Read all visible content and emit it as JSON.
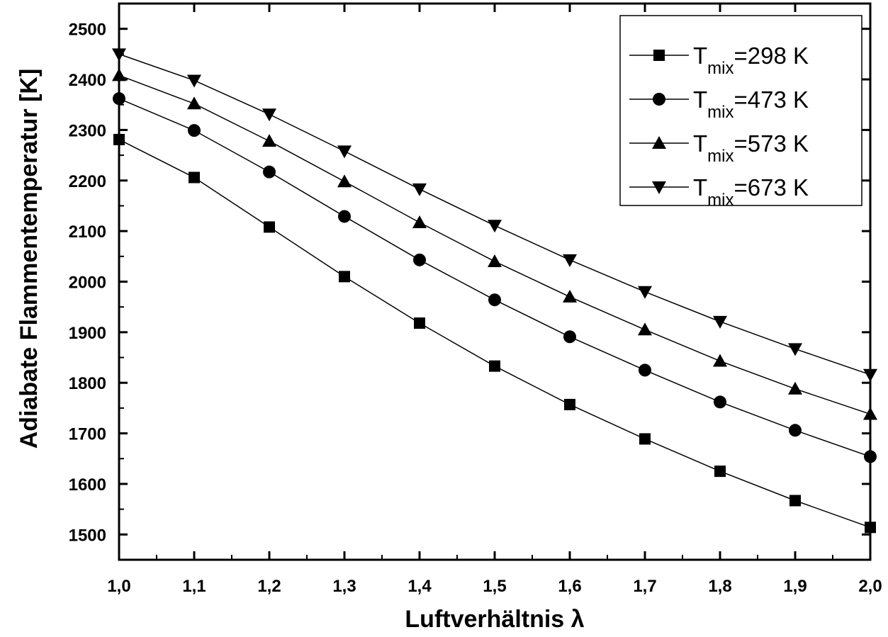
{
  "chart_data": {
    "type": "line",
    "title": "",
    "xlabel": "Luftverhältnis λ",
    "ylabel": "Adiabate Flammentemperatur [K]",
    "xlim": [
      1.0,
      2.0
    ],
    "ylim": [
      1450,
      2550
    ],
    "x": [
      1.0,
      1.1,
      1.2,
      1.3,
      1.4,
      1.5,
      1.6,
      1.7,
      1.8,
      1.9,
      2.0
    ],
    "x_tick_labels": [
      "1,0",
      "1,1",
      "1,2",
      "1,3",
      "1,4",
      "1,5",
      "1,6",
      "1,7",
      "1,8",
      "1,9",
      "2,0"
    ],
    "y_ticks": [
      1500,
      1600,
      1700,
      1800,
      1900,
      2000,
      2100,
      2200,
      2300,
      2400,
      2500
    ],
    "y_tick_labels": [
      "1500",
      "1600",
      "1700",
      "1800",
      "1900",
      "2000",
      "2100",
      "2200",
      "2300",
      "2400",
      "2500"
    ],
    "grid": false,
    "legend_position": "top-right",
    "series": [
      {
        "name": "T_mix=298 K",
        "legend_main": "T",
        "legend_sub": "mix",
        "legend_value": "=298 K",
        "marker": "square",
        "values": [
          2281,
          2206,
          2108,
          2010,
          1918,
          1833,
          1757,
          1689,
          1625,
          1567,
          1514
        ]
      },
      {
        "name": "T_mix=473 K",
        "legend_main": "T",
        "legend_sub": "mix",
        "legend_value": "=473 K",
        "marker": "circle",
        "values": [
          2362,
          2299,
          2217,
          2129,
          2043,
          1964,
          1891,
          1825,
          1762,
          1706,
          1654
        ]
      },
      {
        "name": "T_mix=573 K",
        "legend_main": "T",
        "legend_sub": "mix",
        "legend_value": "=573 K",
        "marker": "triangle-up",
        "values": [
          2408,
          2352,
          2278,
          2198,
          2117,
          2040,
          1970,
          1905,
          1843,
          1788,
          1738
        ]
      },
      {
        "name": "T_mix=673 K",
        "legend_main": "T",
        "legend_sub": "mix",
        "legend_value": "=673 K",
        "marker": "triangle-down",
        "values": [
          2450,
          2398,
          2331,
          2258,
          2183,
          2111,
          2043,
          1980,
          1921,
          1867,
          1816
        ]
      }
    ]
  }
}
